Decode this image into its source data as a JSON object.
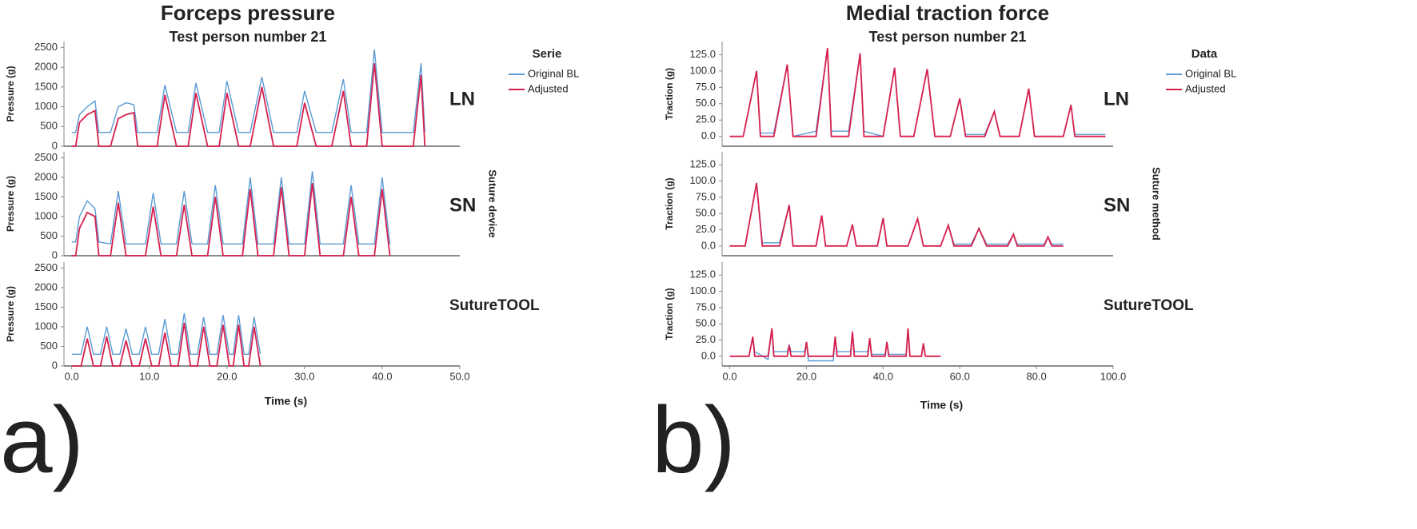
{
  "chart_data": [
    {
      "type": "line",
      "letter": "a)",
      "title": "Forceps pressure",
      "subtitle": "Test person number 21",
      "legend_title": "Serie",
      "facet_label": "Suture device",
      "x_label": "Time (s)",
      "y_label": "Pressure (g)",
      "series": [
        {
          "name": "Original BL",
          "color": "#5b9bd5"
        },
        {
          "name": "Adjusted",
          "color": "#d6204e"
        }
      ],
      "xlim": [
        -1,
        50
      ],
      "ylim": [
        0,
        2650
      ],
      "xticks": [
        {
          "value": 0,
          "label": "0.0"
        },
        {
          "value": 10,
          "label": "10.0"
        },
        {
          "value": 20,
          "label": "20.0"
        },
        {
          "value": 30,
          "label": "30.0"
        },
        {
          "value": 40,
          "label": "40.0"
        },
        {
          "value": 50,
          "label": "50.0"
        }
      ],
      "yticks": [
        0,
        500,
        1000,
        1500,
        2000,
        2500
      ],
      "panels": [
        {
          "label": "LN",
          "x": [
            0,
            0.5,
            1,
            2,
            3,
            3.5,
            5,
            6,
            7,
            8,
            8.5,
            11,
            12,
            13.5,
            15,
            16,
            17.5,
            19,
            20,
            21.5,
            23,
            24.5,
            26,
            29,
            30,
            31.5,
            33.5,
            35,
            36,
            38,
            39,
            40,
            44,
            45,
            45.5
          ],
          "values": [
            [
              350,
              350,
              800,
              1000,
              1150,
              350,
              350,
              1000,
              1100,
              1050,
              350,
              350,
              1550,
              350,
              350,
              1600,
              350,
              350,
              1650,
              350,
              350,
              1750,
              350,
              350,
              1400,
              350,
              350,
              1700,
              350,
              350,
              2450,
              350,
              350,
              2100,
              350
            ],
            [
              0,
              0,
              600,
              800,
              900,
              0,
              0,
              700,
              800,
              850,
              0,
              0,
              1300,
              0,
              0,
              1350,
              0,
              0,
              1350,
              0,
              0,
              1500,
              0,
              0,
              1100,
              0,
              0,
              1400,
              0,
              0,
              2100,
              0,
              0,
              1800,
              0
            ]
          ]
        },
        {
          "label": "SN",
          "x": [
            0,
            0.5,
            1,
            2,
            3,
            3.5,
            5,
            6,
            7,
            9.5,
            10.5,
            11.5,
            13.5,
            14.5,
            15.5,
            17.5,
            18.5,
            19.5,
            22,
            23,
            24,
            26,
            27,
            28,
            30,
            31,
            32,
            35,
            36,
            37,
            39,
            40,
            41
          ],
          "values": [
            [
              350,
              350,
              1000,
              1400,
              1200,
              350,
              300,
              1650,
              300,
              300,
              1600,
              300,
              300,
              1650,
              300,
              300,
              1800,
              300,
              300,
              2000,
              300,
              300,
              2000,
              300,
              300,
              2150,
              300,
              300,
              1800,
              300,
              300,
              2000,
              300
            ],
            [
              0,
              0,
              700,
              1100,
              1000,
              0,
              0,
              1350,
              0,
              0,
              1250,
              0,
              0,
              1300,
              0,
              0,
              1500,
              0,
              0,
              1700,
              0,
              0,
              1750,
              0,
              0,
              1850,
              0,
              0,
              1500,
              0,
              0,
              1700,
              0
            ]
          ]
        },
        {
          "label": "SutureTOOL",
          "x": [
            0,
            1.2,
            2,
            2.8,
            3.7,
            4.5,
            5.3,
            6.2,
            7,
            7.8,
            8.7,
            9.5,
            10.3,
            11.2,
            12,
            12.8,
            13.7,
            14.5,
            15.3,
            16.2,
            17,
            17.8,
            18.7,
            19.5,
            20.3,
            20.8,
            21.5,
            22.2,
            22.8,
            23.5,
            24.3
          ],
          "values": [
            [
              300,
              300,
              1000,
              300,
              300,
              1000,
              300,
              300,
              950,
              300,
              300,
              1000,
              300,
              300,
              1200,
              300,
              300,
              1350,
              300,
              300,
              1250,
              300,
              300,
              1300,
              300,
              300,
              1300,
              300,
              300,
              1250,
              300
            ],
            [
              0,
              0,
              700,
              0,
              0,
              750,
              0,
              0,
              650,
              0,
              0,
              700,
              0,
              0,
              850,
              0,
              0,
              1100,
              0,
              0,
              1000,
              0,
              0,
              1050,
              0,
              0,
              1050,
              0,
              0,
              1000,
              0
            ]
          ]
        }
      ]
    },
    {
      "type": "line",
      "letter": "b)",
      "title": "Medial traction force",
      "subtitle": "Test person number 21",
      "legend_title": "Data",
      "facet_label": "Suture method",
      "x_label": "Time (s)",
      "y_label": "Traction (g)",
      "series": [
        {
          "name": "Original BL",
          "color": "#5b9bd5"
        },
        {
          "name": "Adjusted",
          "color": "#d6204e"
        }
      ],
      "xlim": [
        -2,
        100
      ],
      "ylim": [
        -15,
        145
      ],
      "xticks": [
        {
          "value": 0,
          "label": "0.0"
        },
        {
          "value": 20,
          "label": "20.0"
        },
        {
          "value": 40,
          "label": "40.0"
        },
        {
          "value": 60,
          "label": "60.0"
        },
        {
          "value": 80,
          "label": "80.0"
        },
        {
          "value": 100,
          "label": "100.0"
        }
      ],
      "yticks": [
        {
          "value": 0,
          "label": "0.0"
        },
        {
          "value": 25,
          "label": "25.0"
        },
        {
          "value": 50,
          "label": "50.0"
        },
        {
          "value": 75,
          "label": "75.0"
        },
        {
          "value": 100,
          "label": "100.0"
        },
        {
          "value": 125,
          "label": "125.0"
        }
      ],
      "panels": [
        {
          "label": "LN",
          "x": [
            0,
            3.5,
            7,
            8,
            11.5,
            15,
            16.5,
            22.5,
            25.5,
            26.5,
            31,
            34,
            35,
            40,
            43,
            44.5,
            48,
            51.5,
            53.5,
            57.5,
            60,
            61.5,
            66.5,
            69,
            70.5,
            75.5,
            78,
            79.5,
            87,
            89,
            90,
            98
          ],
          "values": [
            [
              0,
              0,
              100,
              5,
              5,
              110,
              0,
              8,
              135,
              8,
              8,
              127,
              8,
              0,
              105,
              0,
              0,
              103,
              0,
              0,
              58,
              3,
              3,
              38,
              0,
              0,
              73,
              0,
              0,
              48,
              3,
              3
            ],
            [
              0,
              0,
              100,
              0,
              0,
              110,
              0,
              0,
              135,
              0,
              0,
              127,
              0,
              0,
              105,
              0,
              0,
              103,
              0,
              0,
              58,
              0,
              0,
              38,
              0,
              0,
              73,
              0,
              0,
              48,
              0,
              0
            ]
          ]
        },
        {
          "label": "SN",
          "x": [
            0,
            4,
            7,
            8.5,
            13,
            15.5,
            16.5,
            22.5,
            24,
            25,
            30.5,
            32,
            33,
            38.5,
            40,
            41,
            46.5,
            49,
            50.5,
            55,
            57,
            58.5,
            63,
            65,
            67,
            72.5,
            74,
            75,
            82,
            83,
            84,
            87
          ],
          "values": [
            [
              0,
              0,
              97,
              5,
              5,
              63,
              0,
              0,
              47,
              0,
              0,
              33,
              0,
              0,
              43,
              0,
              0,
              42,
              0,
              0,
              32,
              3,
              3,
              27,
              3,
              3,
              18,
              3,
              3,
              14,
              3,
              3
            ],
            [
              0,
              0,
              97,
              0,
              0,
              63,
              0,
              0,
              47,
              0,
              0,
              33,
              0,
              0,
              43,
              0,
              0,
              42,
              0,
              0,
              32,
              0,
              0,
              27,
              0,
              0,
              18,
              0,
              0,
              14,
              0,
              0
            ]
          ]
        },
        {
          "label": "SutureTOOL",
          "x": [
            0,
            5,
            6,
            6.5,
            10,
            11,
            11.5,
            15,
            15.5,
            16,
            19.5,
            20,
            20.5,
            27,
            27.5,
            28,
            31.5,
            32,
            32.5,
            36,
            36.5,
            37,
            40.5,
            41,
            41.5,
            46,
            46.5,
            47,
            50,
            50.5,
            51,
            55
          ],
          "values": [
            [
              0,
              0,
              30,
              7,
              -5,
              43,
              7,
              7,
              17,
              7,
              7,
              22,
              -7,
              -7,
              30,
              7,
              7,
              38,
              7,
              7,
              28,
              3,
              3,
              22,
              3,
              3,
              43,
              0,
              0,
              20,
              0,
              0
            ],
            [
              0,
              0,
              30,
              0,
              0,
              43,
              0,
              0,
              17,
              0,
              0,
              22,
              0,
              0,
              30,
              0,
              0,
              38,
              0,
              0,
              28,
              0,
              0,
              22,
              0,
              0,
              43,
              0,
              0,
              20,
              0,
              0
            ]
          ]
        }
      ]
    }
  ]
}
